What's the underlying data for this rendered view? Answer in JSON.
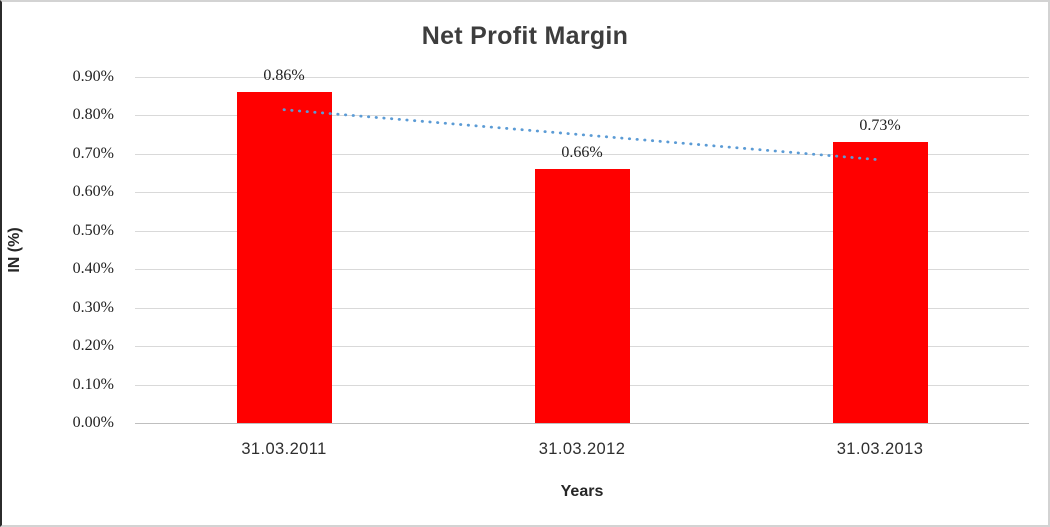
{
  "chart_data": {
    "type": "bar",
    "title": "Net Profit Margin",
    "xlabel": "Years",
    "ylabel": "IN (%)",
    "categories": [
      "31.03.2011",
      "31.03.2012",
      "31.03.2013"
    ],
    "values": [
      0.86,
      0.66,
      0.73
    ],
    "data_labels": [
      "0.86%",
      "0.66%",
      "0.73%"
    ],
    "ylim": [
      0,
      0.9
    ],
    "ytick_step": 0.1,
    "ytick_labels": [
      "0.00%",
      "0.10%",
      "0.20%",
      "0.30%",
      "0.40%",
      "0.50%",
      "0.60%",
      "0.70%",
      "0.80%",
      "0.90%"
    ],
    "grid": true,
    "legend": "none",
    "bar_color": "#FF0000",
    "gridline_color": "#D9D9D9",
    "axis_line_color": "#BFBFBF",
    "title_color": "#3D3D3D",
    "tick_label_color": "#1F1F1F",
    "trendline": {
      "type": "linear",
      "style": "dotted",
      "color": "#5B9BD5",
      "values": [
        0.815,
        0.75,
        0.685
      ]
    }
  }
}
